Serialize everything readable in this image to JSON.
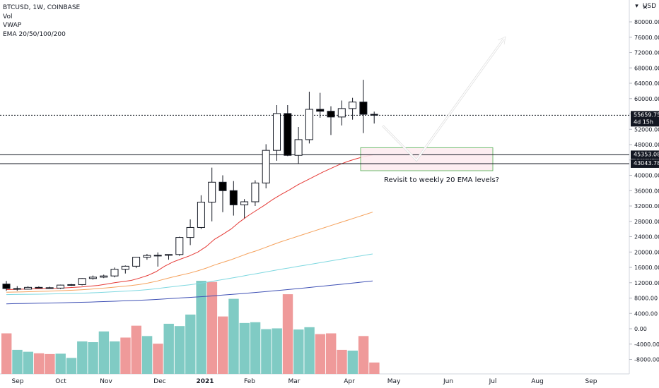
{
  "legend": {
    "symbol": "BTCUSD, 1W, COINBASE",
    "vol": "Vol",
    "vwap": "VWAP",
    "ema": "EMA 20/50/100/200"
  },
  "corner": {
    "currency": "USD",
    "close_icon": "close-icon",
    "currency_icon": "dropdown-icon"
  },
  "annotation": {
    "text": "Revisit to weekly 20 EMA levels?"
  },
  "price_tags": {
    "last": {
      "price": "55659.75",
      "countdown": "4d 15h"
    },
    "level1": "45353.08",
    "level2": "43043.78"
  },
  "chart_data": {
    "type": "candlestick",
    "title": "BTCUSD, 1W, COINBASE",
    "ylim": [
      -12000,
      84000
    ],
    "y_ticks": [
      "80000.00",
      "76000.00",
      "72000.00",
      "68000.00",
      "64000.00",
      "60000.00",
      "56000.00",
      "52000.00",
      "48000.00",
      "44000.00",
      "40000.00",
      "36000.00",
      "32000.00",
      "28000.00",
      "24000.00",
      "20000.00",
      "16000.00",
      "12000.00",
      "8000.00",
      "4000.00",
      "0.00",
      "-4000.00",
      "-8000.00"
    ],
    "x_ticks": [
      "Sep",
      "Oct",
      "Nov",
      "Dec",
      "2021",
      "Feb",
      "Mar",
      "Apr",
      "May",
      "Jun",
      "Jul",
      "Aug",
      "Sep"
    ],
    "candles": [
      {
        "o": 11650,
        "h": 12470,
        "l": 9880,
        "c": 10480
      },
      {
        "o": 10480,
        "h": 11100,
        "l": 9900,
        "c": 10320
      },
      {
        "o": 10320,
        "h": 11080,
        "l": 10220,
        "c": 10790
      },
      {
        "o": 10790,
        "h": 11050,
        "l": 10600,
        "c": 10700
      },
      {
        "o": 10700,
        "h": 10950,
        "l": 10530,
        "c": 10600
      },
      {
        "o": 10600,
        "h": 11500,
        "l": 10400,
        "c": 11380
      },
      {
        "o": 11380,
        "h": 11700,
        "l": 11150,
        "c": 11500
      },
      {
        "o": 11500,
        "h": 13200,
        "l": 11300,
        "c": 13100
      },
      {
        "o": 13100,
        "h": 13870,
        "l": 12800,
        "c": 13450
      },
      {
        "o": 13450,
        "h": 14100,
        "l": 13200,
        "c": 13760
      },
      {
        "o": 13760,
        "h": 15960,
        "l": 13400,
        "c": 15500
      },
      {
        "o": 15500,
        "h": 16500,
        "l": 14400,
        "c": 16300
      },
      {
        "o": 16300,
        "h": 18500,
        "l": 15800,
        "c": 18650
      },
      {
        "o": 18650,
        "h": 19500,
        "l": 18000,
        "c": 19100
      },
      {
        "o": 19100,
        "h": 19900,
        "l": 16200,
        "c": 19150
      },
      {
        "o": 19150,
        "h": 19400,
        "l": 18000,
        "c": 19350
      },
      {
        "o": 19350,
        "h": 24000,
        "l": 19000,
        "c": 23800
      },
      {
        "o": 23800,
        "h": 28500,
        "l": 21800,
        "c": 26400
      },
      {
        "o": 26400,
        "h": 34800,
        "l": 26000,
        "c": 33000
      },
      {
        "o": 33000,
        "h": 42000,
        "l": 28000,
        "c": 38200
      },
      {
        "o": 38200,
        "h": 40000,
        "l": 30400,
        "c": 36000
      },
      {
        "o": 36000,
        "h": 38500,
        "l": 29500,
        "c": 32300
      },
      {
        "o": 32300,
        "h": 33800,
        "l": 28800,
        "c": 33100
      },
      {
        "o": 33100,
        "h": 38700,
        "l": 32000,
        "c": 38000
      },
      {
        "o": 38000,
        "h": 48100,
        "l": 36600,
        "c": 46500
      },
      {
        "o": 46500,
        "h": 58300,
        "l": 43800,
        "c": 56100
      },
      {
        "o": 56100,
        "h": 58300,
        "l": 45000,
        "c": 45200
      },
      {
        "o": 45200,
        "h": 52600,
        "l": 43000,
        "c": 49300
      },
      {
        "o": 49300,
        "h": 61800,
        "l": 48300,
        "c": 57200
      },
      {
        "o": 57200,
        "h": 61500,
        "l": 55000,
        "c": 56700
      },
      {
        "o": 56700,
        "h": 58000,
        "l": 50500,
        "c": 55200
      },
      {
        "o": 55200,
        "h": 59500,
        "l": 53000,
        "c": 57400
      },
      {
        "o": 57400,
        "h": 60200,
        "l": 54500,
        "c": 59100
      },
      {
        "o": 59100,
        "h": 64900,
        "l": 51000,
        "c": 55900
      },
      {
        "o": 55900,
        "h": 56600,
        "l": 53500,
        "c": 55660
      }
    ],
    "volume": [
      {
        "v": -1200,
        "up": false
      },
      {
        "v": -5500,
        "up": true
      },
      {
        "v": -6000,
        "up": true
      },
      {
        "v": -6400,
        "up": false
      },
      {
        "v": -6600,
        "up": false
      },
      {
        "v": -6500,
        "up": true
      },
      {
        "v": -7600,
        "up": true
      },
      {
        "v": -3300,
        "up": true
      },
      {
        "v": -3500,
        "up": true
      },
      {
        "v": -700,
        "up": true
      },
      {
        "v": -3300,
        "up": true
      },
      {
        "v": -2300,
        "up": false
      },
      {
        "v": 800,
        "up": false
      },
      {
        "v": -1900,
        "up": true
      },
      {
        "v": -3900,
        "up": false
      },
      {
        "v": 1300,
        "up": true
      },
      {
        "v": 700,
        "up": true
      },
      {
        "v": 3700,
        "up": true
      },
      {
        "v": 12500,
        "up": true
      },
      {
        "v": 12200,
        "up": false
      },
      {
        "v": 3200,
        "up": false
      },
      {
        "v": 7800,
        "up": true
      },
      {
        "v": 1500,
        "up": true
      },
      {
        "v": 1700,
        "up": true
      },
      {
        "v": -100,
        "up": true
      },
      {
        "v": 100,
        "up": true
      },
      {
        "v": 9000,
        "up": false
      },
      {
        "v": -200,
        "up": true
      },
      {
        "v": 400,
        "up": true
      },
      {
        "v": -1400,
        "up": false
      },
      {
        "v": -1200,
        "up": false
      },
      {
        "v": -5500,
        "up": false
      },
      {
        "v": -5700,
        "up": true
      },
      {
        "v": -1900,
        "up": false
      },
      {
        "v": -8800,
        "up": false
      }
    ],
    "ema_series": [
      {
        "color": "#e53935",
        "values": [
          10200,
          10250,
          10320,
          10380,
          10420,
          10480,
          10540,
          10650,
          10770,
          10900,
          11100,
          11300,
          11650,
          12000,
          12300,
          12600,
          13200,
          13900,
          14900,
          16300,
          17400,
          18200,
          19000,
          20000,
          21400,
          23300,
          24600,
          26000,
          27800,
          29400,
          30800,
          32200,
          33700,
          35000,
          36200,
          37500,
          38600,
          39700,
          40800,
          41800,
          42800,
          43600,
          44300,
          44900,
          45300
        ]
      },
      {
        "color": "#f5a25d",
        "values": [
          9500,
          9560,
          9620,
          9680,
          9740,
          9800,
          9870,
          9950,
          10050,
          10150,
          10300,
          10480,
          10650,
          10850,
          11050,
          11250,
          11550,
          11900,
          12350,
          12950,
          13500,
          14000,
          14500,
          15100,
          15800,
          16600,
          17300,
          18000,
          18800,
          19600,
          20300,
          21100,
          21900,
          22700,
          23400,
          24100,
          24800,
          25500,
          26200,
          26900,
          27600,
          28300,
          29000,
          29700,
          30400
        ]
      },
      {
        "color": "#7fd8e0",
        "values": [
          8900,
          8930,
          8960,
          8990,
          9020,
          9060,
          9100,
          9150,
          9210,
          9270,
          9350,
          9440,
          9540,
          9650,
          9760,
          9870,
          10020,
          10200,
          10420,
          10700,
          10970,
          11220,
          11460,
          11750,
          12080,
          12470,
          12820,
          13180,
          13580,
          13980,
          14350,
          14740,
          15140,
          15520,
          15880,
          16250,
          16610,
          16970,
          17330,
          17700,
          18060,
          18430,
          18800,
          19150,
          19500
        ]
      },
      {
        "color": "#3f51b5",
        "values": [
          6500,
          6540,
          6580,
          6620,
          6660,
          6700,
          6740,
          6790,
          6840,
          6900,
          6960,
          7030,
          7100,
          7180,
          7260,
          7340,
          7430,
          7530,
          7640,
          7770,
          7900,
          8030,
          8160,
          8300,
          8450,
          8610,
          8770,
          8940,
          9110,
          9290,
          9470,
          9660,
          9850,
          10050,
          10250,
          10460,
          10670,
          10880,
          11100,
          11320,
          11540,
          11770,
          12000,
          12230,
          12470
        ]
      }
    ],
    "price_levels": [
      45353.08,
      43043.78
    ],
    "last_price": 55659.75,
    "grid": false
  },
  "colors": {
    "up": "#26a69a",
    "down": "#ef5350",
    "vol_up": "#80cbc4",
    "vol_down": "#ef9a9a",
    "candle_up_fill": "#ffffff",
    "candle_down_fill": "#000000",
    "zone_fill": "#fdecef",
    "zone_border": "#4caf50"
  }
}
